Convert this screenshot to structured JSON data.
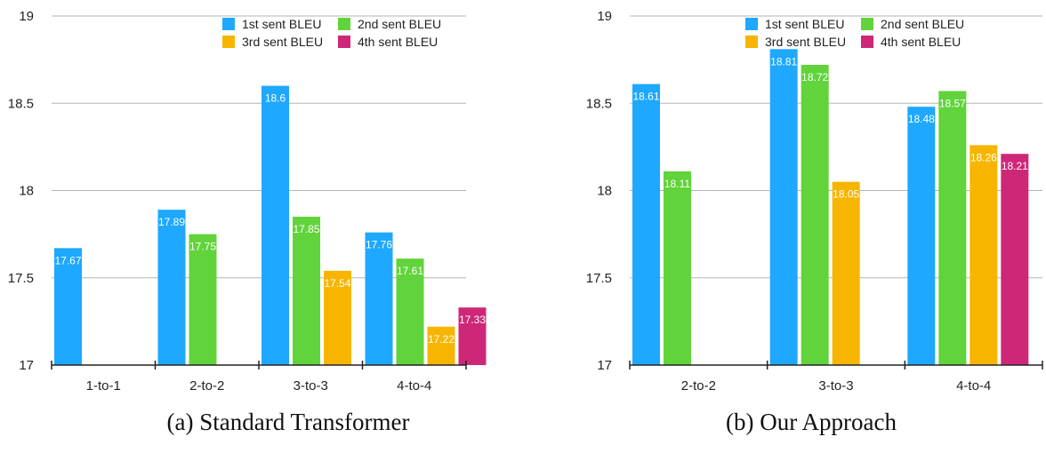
{
  "series_colors": [
    "#1ea8ff",
    "#60d43a",
    "#f7b500",
    "#cf2778"
  ],
  "chart_data": [
    {
      "type": "bar",
      "caption": "(a)  Standard Transformer",
      "categories": [
        "1-to-1",
        "2-to-2",
        "3-to-3",
        "4-to-4"
      ],
      "series": [
        {
          "name": "1st sent BLEU",
          "values": [
            17.67,
            17.89,
            18.6,
            17.76
          ]
        },
        {
          "name": "2nd sent BLEU",
          "values": [
            null,
            17.75,
            17.85,
            17.61
          ]
        },
        {
          "name": "3rd sent BLEU",
          "values": [
            null,
            null,
            17.54,
            17.22
          ]
        },
        {
          "name": "4th sent BLEU",
          "values": [
            null,
            null,
            null,
            17.33
          ]
        }
      ],
      "value_labels": [
        [
          "17.67",
          "17.89",
          "18.6",
          "17.76"
        ],
        [
          null,
          "17.75",
          "17.85",
          "17.61"
        ],
        [
          null,
          null,
          "17.54",
          "17.22"
        ],
        [
          null,
          null,
          null,
          "17.33"
        ]
      ],
      "ylim": [
        17,
        19
      ],
      "yticks": [
        "17",
        "17.5",
        "18",
        "18.5",
        "19"
      ],
      "grid": true,
      "legend": "top-right"
    },
    {
      "type": "bar",
      "caption": "(b)  Our Approach",
      "categories": [
        "2-to-2",
        "3-to-3",
        "4-to-4"
      ],
      "series": [
        {
          "name": "1st sent BLEU",
          "values": [
            18.61,
            18.81,
            18.48
          ]
        },
        {
          "name": "2nd sent BLEU",
          "values": [
            18.11,
            18.72,
            18.57
          ]
        },
        {
          "name": "3rd sent BLEU",
          "values": [
            null,
            18.05,
            18.26
          ]
        },
        {
          "name": "4th sent BLEU",
          "values": [
            null,
            null,
            18.21
          ]
        }
      ],
      "value_labels": [
        [
          "18.61",
          "18.81",
          "18.48"
        ],
        [
          "18.11",
          "18.72",
          "18.57"
        ],
        [
          null,
          "18.05",
          "18.26"
        ],
        [
          null,
          null,
          "18.21"
        ]
      ],
      "ylim": [
        17,
        19
      ],
      "yticks": [
        "17",
        "17.5",
        "18",
        "18.5",
        "19"
      ],
      "grid": true,
      "legend": "top-right"
    }
  ]
}
